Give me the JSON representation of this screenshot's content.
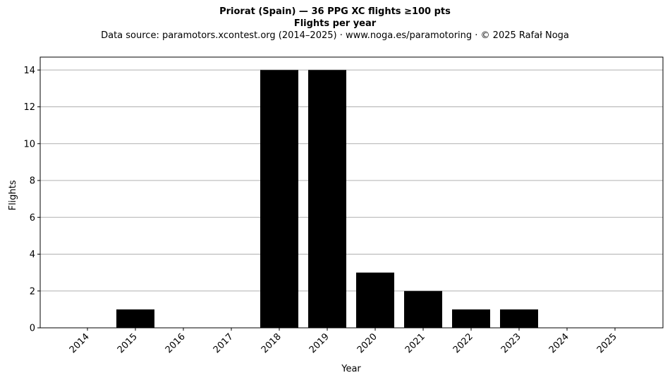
{
  "chart_data": {
    "type": "bar",
    "title": "Priorat (Spain)  —  36 PPG XC flights ≥100 pts",
    "subtitle": "Flights per year",
    "source": "Data source: paramotors.xcontest.org (2014–2025)  ·  www.noga.es/paramotoring  ·  © 2025 Rafał Noga",
    "xlabel": "Year",
    "ylabel": "Flights",
    "categories": [
      "2014",
      "2015",
      "2016",
      "2017",
      "2018",
      "2019",
      "2020",
      "2021",
      "2022",
      "2023",
      "2024",
      "2025"
    ],
    "values": [
      0,
      1,
      0,
      0,
      14,
      14,
      3,
      2,
      1,
      1,
      0,
      0
    ],
    "ylim": [
      0,
      14.7
    ],
    "yticks": [
      0,
      2,
      4,
      6,
      8,
      10,
      12,
      14
    ],
    "grid": "y",
    "bar_color": "#000000",
    "grid_color": "#b0b0b0"
  }
}
